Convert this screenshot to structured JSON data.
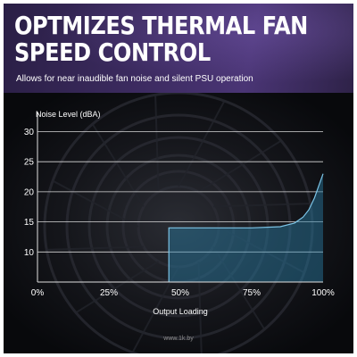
{
  "banner": {
    "title_line1": "OPTMIZES THERMAL FAN",
    "title_line2": "SPEED CONTROL",
    "subtitle": "Allows for near inaudible fan noise and silent PSU operation"
  },
  "watermark": "www.1k.by",
  "colors": {
    "curve_stroke": "#7cc4e6",
    "curve_fill": "#2b7fa6",
    "grid": "#d9d9d9",
    "text": "#ffffff",
    "banner_purple": "#3e2c63"
  },
  "chart_data": {
    "type": "area",
    "title": "",
    "xlabel": "Output Loading",
    "ylabel": "Noise Level (dBA)",
    "xlim": [
      0,
      100
    ],
    "ylim": [
      5,
      32
    ],
    "x_ticks": [
      0,
      25,
      50,
      75,
      100
    ],
    "x_tick_labels": [
      "0%",
      "25%",
      "50%",
      "75%",
      "100%"
    ],
    "y_ticks": [
      10,
      15,
      20,
      25,
      30
    ],
    "y_tick_labels": [
      "10",
      "15",
      "20",
      "25",
      "30"
    ],
    "grid": true,
    "series": [
      {
        "x": [
          46,
          46,
          55,
          65,
          75,
          85,
          90,
          93,
          95,
          97,
          98.5,
          100
        ],
        "y": [
          5,
          14,
          14,
          14,
          14,
          14.2,
          14.8,
          15.8,
          17,
          19,
          21,
          23
        ]
      }
    ]
  }
}
